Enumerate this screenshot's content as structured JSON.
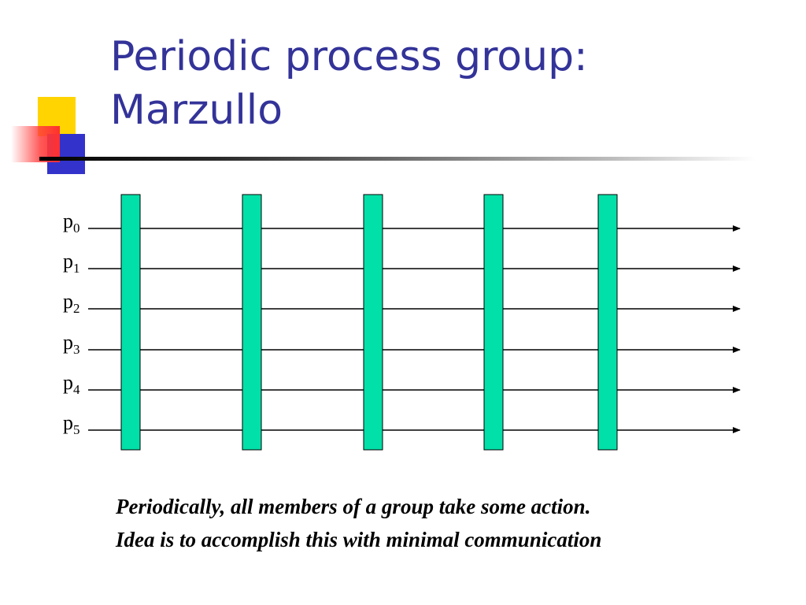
{
  "slide": {
    "title_lines": [
      "Periodic process group:",
      "Marzullo"
    ]
  },
  "diagram": {
    "processes": [
      {
        "base": "p",
        "index": "0"
      },
      {
        "base": "p",
        "index": "1"
      },
      {
        "base": "p",
        "index": "2"
      },
      {
        "base": "p",
        "index": "3"
      },
      {
        "base": "p",
        "index": "4"
      },
      {
        "base": "p",
        "index": "5"
      }
    ],
    "sync_bar_count": 5,
    "colors": {
      "sync_bar": "#00e0a8",
      "timeline": "#000000",
      "title": "#333399"
    }
  },
  "caption": {
    "lines": [
      "Periodically, all members of a group take some action.",
      "Idea is to accomplish this with minimal communication"
    ]
  }
}
